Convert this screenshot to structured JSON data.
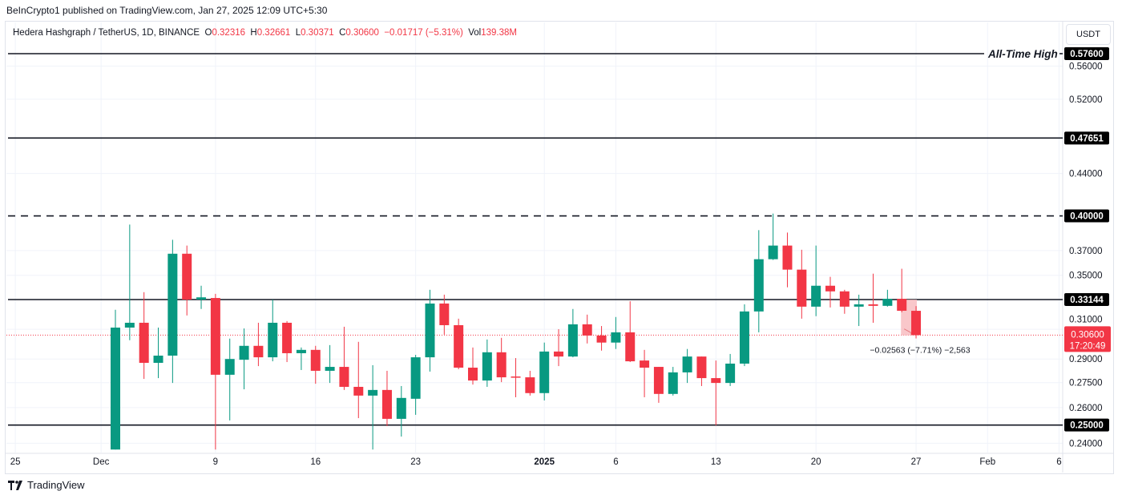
{
  "publisher_line": "BeInCrypto1 published on TradingView.com, Jan 27, 2025 12:09 UTC+5:30",
  "legend": {
    "symbol": "Hedera Hashgraph / TetherUS, 1D, BINANCE",
    "o_label": "O",
    "o": "0.32316",
    "h_label": "H",
    "h": "0.32661",
    "l_label": "L",
    "l": "0.30371",
    "c_label": "C",
    "c": "0.30600",
    "change": "−0.01717 (−5.31%)",
    "vol_label": "Vol",
    "vol": "139.38M"
  },
  "currency_button": "USDT",
  "footer": {
    "brand": "TradingView",
    "icon": "tradingview-logo-icon"
  },
  "colors": {
    "up": "#089981",
    "down": "#f23645",
    "level_line": "#131722",
    "label_bg": "#000000",
    "measure_fill": "#f7b9bd"
  },
  "chart_data": {
    "type": "candlestick",
    "title": "",
    "y_scale": "log",
    "grid": true,
    "yticks": [
      0.56,
      0.52,
      0.44,
      0.37,
      0.35,
      0.31,
      0.29,
      0.275,
      0.26,
      0.24
    ],
    "ytick_labels": [
      "0.56000",
      "0.52000",
      "0.44000",
      "0.37000",
      "0.35000",
      "0.31000",
      "0.29000",
      "0.27500",
      "0.26000",
      "0.24000"
    ],
    "xticks": [
      {
        "label": "25",
        "date": "2024-11-25"
      },
      {
        "label": "Dec",
        "date": "2024-12-01"
      },
      {
        "label": "9",
        "date": "2024-12-09"
      },
      {
        "label": "16",
        "date": "2024-12-16"
      },
      {
        "label": "23",
        "date": "2024-12-23"
      },
      {
        "label": "2025",
        "date": "2025-01-01",
        "bold": true
      },
      {
        "label": "6",
        "date": "2025-01-06"
      },
      {
        "label": "13",
        "date": "2025-01-13"
      },
      {
        "label": "20",
        "date": "2025-01-20"
      },
      {
        "label": "27",
        "date": "2025-01-27"
      },
      {
        "label": "Feb",
        "date": "2025-02-01"
      },
      {
        "label": "6",
        "date": "2025-02-06"
      }
    ],
    "levels": [
      {
        "price": 0.576,
        "label": "0.57600",
        "style": "solid",
        "annotation": "All-Time High"
      },
      {
        "price": 0.47651,
        "label": "0.47651",
        "style": "solid"
      },
      {
        "price": 0.4,
        "label": "0.40000",
        "style": "dashed"
      },
      {
        "price": 0.33144,
        "label": "0.33144",
        "style": "solid"
      },
      {
        "price": 0.25,
        "label": "0.25000",
        "style": "solid"
      }
    ],
    "last_price": {
      "price": 0.306,
      "label": "0.30600",
      "countdown": "17:20:49"
    },
    "measurement": {
      "from_date": "2025-01-26",
      "to_date": "2025-01-27",
      "from_price": 0.33144,
      "to_price": 0.30581,
      "label": "−0.02563 (−7.71%) −2,563"
    },
    "columns": [
      "date",
      "open",
      "high",
      "low",
      "close"
    ],
    "candles": [
      [
        "2024-12-02",
        0.2366,
        0.3239,
        0.2366,
        0.3112
      ],
      [
        "2024-12-03",
        0.3112,
        0.3923,
        0.3025,
        0.3146
      ],
      [
        "2024-12-04",
        0.3146,
        0.337,
        0.2773,
        0.2875
      ],
      [
        "2024-12-05",
        0.2875,
        0.3112,
        0.2778,
        0.2922
      ],
      [
        "2024-12-06",
        0.2922,
        0.3791,
        0.2748,
        0.3674
      ],
      [
        "2024-12-07",
        0.3674,
        0.3742,
        0.3198,
        0.3314
      ],
      [
        "2024-12-08",
        0.3314,
        0.3419,
        0.3245,
        0.3331
      ],
      [
        "2024-12-09",
        0.3326,
        0.3357,
        0.2366,
        0.2799
      ],
      [
        "2024-12-10",
        0.2799,
        0.3036,
        0.2526,
        0.29
      ],
      [
        "2024-12-11",
        0.2895,
        0.3106,
        0.2709,
        0.2987
      ],
      [
        "2024-12-12",
        0.2987,
        0.3146,
        0.2854,
        0.2911
      ],
      [
        "2024-12-13",
        0.2911,
        0.3314,
        0.2885,
        0.3146
      ],
      [
        "2024-12-14",
        0.3146,
        0.3158,
        0.288,
        0.2938
      ],
      [
        "2024-12-15",
        0.2938,
        0.2976,
        0.2829,
        0.296
      ],
      [
        "2024-12-16",
        0.296,
        0.2987,
        0.2743,
        0.2824
      ],
      [
        "2024-12-17",
        0.2824,
        0.2992,
        0.2748,
        0.2849
      ],
      [
        "2024-12-18",
        0.2849,
        0.3118,
        0.2705,
        0.2724
      ],
      [
        "2024-12-19",
        0.2724,
        0.3014,
        0.2539,
        0.2671
      ],
      [
        "2024-12-20",
        0.2671,
        0.286,
        0.2366,
        0.2705
      ],
      [
        "2024-12-21",
        0.2705,
        0.2824,
        0.2494,
        0.2535
      ],
      [
        "2024-12-22",
        0.2535,
        0.2729,
        0.2436,
        0.2657
      ],
      [
        "2024-12-23",
        0.2652,
        0.2927,
        0.2558,
        0.2911
      ],
      [
        "2024-12-24",
        0.2911,
        0.3388,
        0.2819,
        0.3285
      ],
      [
        "2024-12-25",
        0.3285,
        0.3351,
        0.3063,
        0.3129
      ],
      [
        "2024-12-26",
        0.3129,
        0.3175,
        0.2834,
        0.2844
      ],
      [
        "2024-12-27",
        0.2844,
        0.2976,
        0.2738,
        0.2763
      ],
      [
        "2024-12-28",
        0.2763,
        0.303,
        0.2724,
        0.2944
      ],
      [
        "2024-12-29",
        0.2944,
        0.3041,
        0.2753,
        0.2783
      ],
      [
        "2024-12-30",
        0.2788,
        0.2906,
        0.2661,
        0.2783
      ],
      [
        "2024-12-31",
        0.2783,
        0.2824,
        0.2671,
        0.2686
      ],
      [
        "2025-01-01",
        0.2686,
        0.3009,
        0.2642,
        0.2949
      ],
      [
        "2025-01-02",
        0.2949,
        0.3101,
        0.2854,
        0.2916
      ],
      [
        "2025-01-03",
        0.2916,
        0.3245,
        0.2911,
        0.3135
      ],
      [
        "2025-01-04",
        0.3135,
        0.3204,
        0.3003,
        0.3057
      ],
      [
        "2025-01-05",
        0.3057,
        0.3123,
        0.2955,
        0.3009
      ],
      [
        "2025-01-06",
        0.3009,
        0.3187,
        0.2966,
        0.3079
      ],
      [
        "2025-01-07",
        0.3079,
        0.3302,
        0.288,
        0.2885
      ],
      [
        "2025-01-08",
        0.289,
        0.296,
        0.2661,
        0.2844
      ],
      [
        "2025-01-09",
        0.2849,
        0.2849,
        0.2628,
        0.2681
      ],
      [
        "2025-01-10",
        0.2681,
        0.2849,
        0.2671,
        0.2814
      ],
      [
        "2025-01-11",
        0.2814,
        0.2966,
        0.2748,
        0.2916
      ],
      [
        "2025-01-12",
        0.2916,
        0.2916,
        0.2729,
        0.2778
      ],
      [
        "2025-01-13",
        0.2778,
        0.289,
        0.2498,
        0.2748
      ],
      [
        "2025-01-14",
        0.2748,
        0.2933,
        0.2729,
        0.287
      ],
      [
        "2025-01-15",
        0.287,
        0.3279,
        0.2854,
        0.3227
      ],
      [
        "2025-01-16",
        0.3227,
        0.3874,
        0.3079,
        0.3629
      ],
      [
        "2025-01-17",
        0.3629,
        0.4021,
        0.3623,
        0.3742
      ],
      [
        "2025-01-18",
        0.3742,
        0.3853,
        0.3407,
        0.3545
      ],
      [
        "2025-01-19",
        0.3545,
        0.3707,
        0.3175,
        0.3262
      ],
      [
        "2025-01-20",
        0.3262,
        0.3742,
        0.3193,
        0.3419
      ],
      [
        "2025-01-21",
        0.3419,
        0.3488,
        0.3256,
        0.3376
      ],
      [
        "2025-01-22",
        0.3376,
        0.3388,
        0.321,
        0.3262
      ],
      [
        "2025-01-23",
        0.3262,
        0.3351,
        0.3123,
        0.3279
      ],
      [
        "2025-01-24",
        0.3279,
        0.3513,
        0.3146,
        0.3268
      ],
      [
        "2025-01-25",
        0.3268,
        0.3388,
        0.3262,
        0.332
      ],
      [
        "2025-01-26",
        0.332,
        0.3552,
        0.3221,
        0.3232
      ],
      [
        "2025-01-27",
        0.32316,
        0.32661,
        0.30371,
        0.306
      ]
    ]
  }
}
